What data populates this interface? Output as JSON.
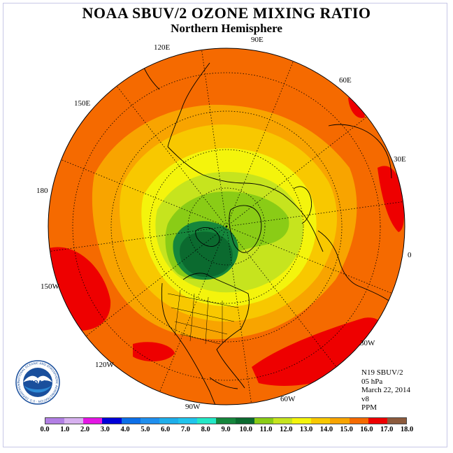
{
  "title": "NOAA SBUV/2 OZONE MIXING RATIO",
  "subtitle": "Northern Hemisphere",
  "longitude_labels": [
    "90E",
    "60E",
    "30E",
    "0",
    "30W",
    "60W",
    "90W",
    "120W",
    "150W",
    "180",
    "150E",
    "120E"
  ],
  "info": {
    "instrument": "N19 SBUV/2",
    "level": "05 hPa",
    "date": "March 22, 2014",
    "version": "v8",
    "units": "PPM"
  },
  "colorbar": {
    "ticks": [
      "0.0",
      "1.0",
      "2.0",
      "3.0",
      "4.0",
      "5.0",
      "6.0",
      "7.0",
      "8.0",
      "9.0",
      "10.0",
      "11.0",
      "12.0",
      "13.0",
      "14.0",
      "15.0",
      "16.0",
      "17.0",
      "18.0"
    ],
    "colors": [
      "#b27fe4",
      "#d7b1ef",
      "#e416e4",
      "#0000d8",
      "#0c6fe8",
      "#1f8fee",
      "#1eaeea",
      "#20c4ec",
      "#23e8c6",
      "#15863c",
      "#0b6a2f",
      "#8acc16",
      "#c6e41e",
      "#f4f40c",
      "#f8c800",
      "#f8a400",
      "#f56a00",
      "#ee0000",
      "#8c5a3c"
    ]
  },
  "logo": {
    "text": "NOAA",
    "ring_text": "NATIONAL OCEANIC AND ATMOSPHERIC ADMINISTRATION · U.S. DEPARTMENT OF COMMERCE"
  },
  "colors": {
    "background_ocean": "#f56a00",
    "frame": "#c8c8e6"
  }
}
